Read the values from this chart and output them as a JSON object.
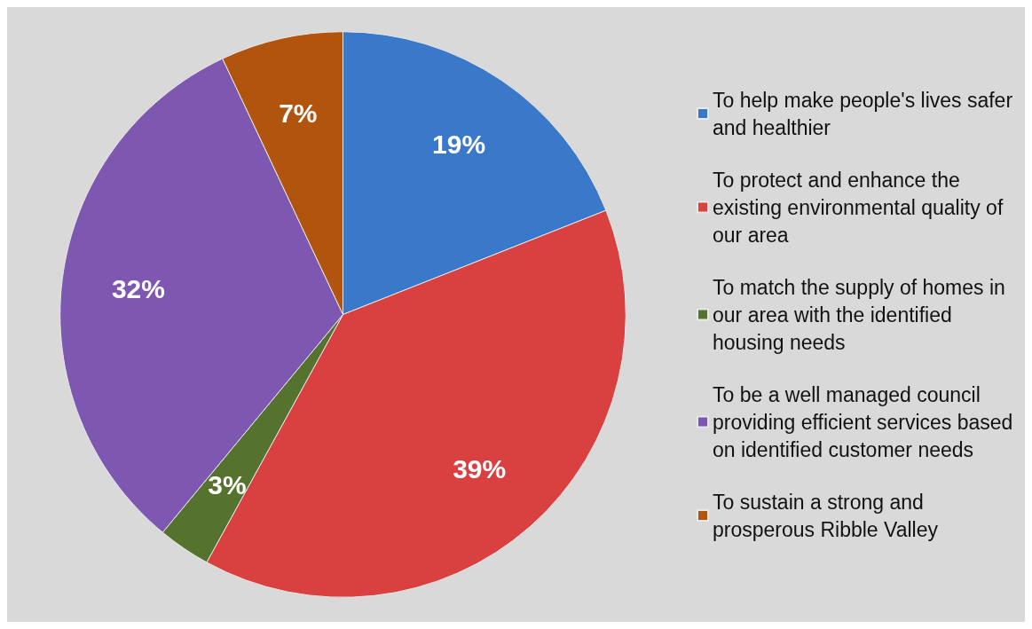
{
  "chart_data": {
    "type": "pie",
    "categories": [
      "To help make people's lives safer and healthier",
      "To protect and enhance the existing environmental quality of our area",
      "To match the supply of homes in our area with the identified housing needs",
      "To be a well managed council providing efficient services based on identified customer needs",
      "To sustain a strong and prosperous Ribble Valley"
    ],
    "values": [
      19,
      39,
      3,
      32,
      7
    ],
    "colors": [
      "#3a78c9",
      "#d94040",
      "#56722f",
      "#7e57b0",
      "#b0540e"
    ],
    "value_labels": [
      "19%",
      "39%",
      "3%",
      "32%",
      "7%"
    ],
    "legend": "right"
  }
}
